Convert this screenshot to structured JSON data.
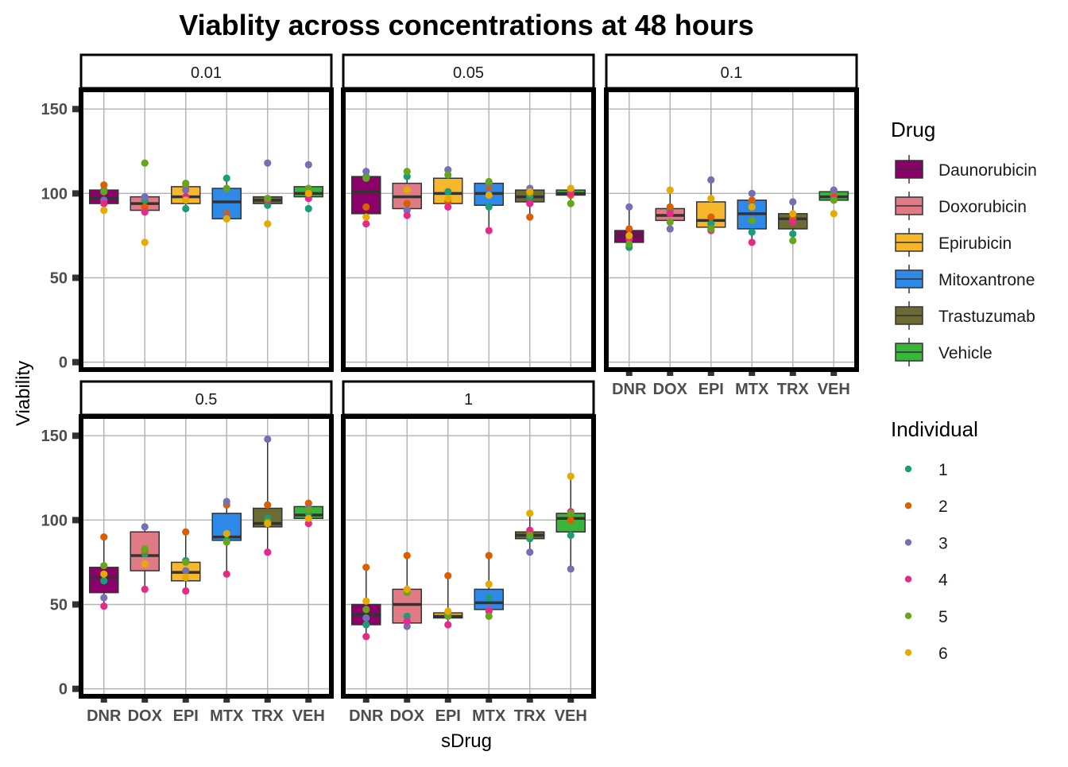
{
  "chart_data": {
    "type": "box",
    "title": "Viablity across concentrations at 48 hours",
    "xlabel": "sDrug",
    "ylabel": "Viability",
    "ylim": [
      -3,
      160
    ],
    "yticks": [
      0,
      50,
      100,
      150
    ],
    "grid": true,
    "legend_position": "right",
    "categories": [
      "DNR",
      "DOX",
      "EPI",
      "MTX",
      "TRX",
      "VEH"
    ],
    "drug_legend": {
      "title": "Drug",
      "items": [
        {
          "name": "Daunorubicin",
          "color": "#8B0069"
        },
        {
          "name": "Doxorubicin",
          "color": "#E07A84"
        },
        {
          "name": "Epirubicin",
          "color": "#F6B72F"
        },
        {
          "name": "Mitoxantrone",
          "color": "#2F89E6"
        },
        {
          "name": "Trastuzumab",
          "color": "#6B6B33"
        },
        {
          "name": "Vehicle",
          "color": "#3BB43B"
        }
      ]
    },
    "individual_legend": {
      "title": "Individual",
      "items": [
        {
          "name": "1",
          "color": "#1B9E77"
        },
        {
          "name": "2",
          "color": "#D95F02"
        },
        {
          "name": "3",
          "color": "#7570B3"
        },
        {
          "name": "4",
          "color": "#E7298A"
        },
        {
          "name": "5",
          "color": "#66A61E"
        },
        {
          "name": "6",
          "color": "#E6AB02"
        }
      ]
    },
    "facets": [
      {
        "label": "0.01",
        "boxes": [
          {
            "q1": 94,
            "median": 97,
            "q3": 102,
            "min": 94,
            "max": 104,
            "points": [
              102,
              105,
              96,
              94,
              101,
              90
            ]
          },
          {
            "q1": 90,
            "median": 94,
            "q3": 98,
            "min": 89,
            "max": 99,
            "points": [
              96,
              92,
              98,
              89,
              118,
              71
            ]
          },
          {
            "q1": 94,
            "median": 98,
            "q3": 104,
            "min": 91,
            "max": 106,
            "points": [
              91,
              104,
              102,
              98,
              106,
              96
            ]
          },
          {
            "q1": 85,
            "median": 95,
            "q3": 103,
            "min": 85,
            "max": 109,
            "points": [
              109,
              88,
              86,
              85,
              103,
              85
            ]
          },
          {
            "q1": 94,
            "median": 96,
            "q3": 98,
            "min": 94,
            "max": 98,
            "points": [
              93,
              97,
              118,
              96,
              97,
              82
            ]
          },
          {
            "q1": 98,
            "median": 100,
            "q3": 104,
            "min": 98,
            "max": 104,
            "points": [
              91,
              101,
              117,
              97,
              103,
              100
            ]
          }
        ]
      },
      {
        "label": "0.05",
        "boxes": [
          {
            "q1": 88,
            "median": 101,
            "q3": 110,
            "min": 82,
            "max": 113,
            "points": [
              110,
              92,
              113,
              82,
              109,
              86
            ]
          },
          {
            "q1": 91,
            "median": 98,
            "q3": 106,
            "min": 87,
            "max": 113,
            "points": [
              110,
              94,
              90,
              87,
              113,
              102
            ]
          },
          {
            "q1": 94,
            "median": 100,
            "q3": 109,
            "min": 92,
            "max": 114,
            "points": [
              101,
              95,
              114,
              92,
              111,
              97
            ]
          },
          {
            "q1": 93,
            "median": 100,
            "q3": 106,
            "min": 78,
            "max": 107,
            "points": [
              92,
              104,
              106,
              78,
              107,
              99
            ]
          },
          {
            "q1": 95,
            "median": 98,
            "q3": 102,
            "min": 86,
            "max": 103,
            "points": [
              98,
              86,
              103,
              94,
              100,
              101
            ]
          },
          {
            "q1": 99,
            "median": 100,
            "q3": 102,
            "min": 94,
            "max": 103,
            "points": [
              101,
              99,
              102,
              100,
              94,
              103
            ]
          }
        ]
      },
      {
        "label": "0.1",
        "boxes": [
          {
            "q1": 71,
            "median": 75,
            "q3": 78,
            "min": 68,
            "max": 92,
            "points": [
              68,
              79,
              92,
              73,
              70,
              75
            ]
          },
          {
            "q1": 84,
            "median": 87,
            "q3": 91,
            "min": 79,
            "max": 102,
            "points": [
              90,
              92,
              79,
              88,
              83,
              102
            ]
          },
          {
            "q1": 80,
            "median": 84,
            "q3": 95,
            "min": 78,
            "max": 108,
            "points": [
              82,
              86,
              108,
              78,
              79,
              97
            ]
          },
          {
            "q1": 79,
            "median": 88,
            "q3": 96,
            "min": 71,
            "max": 100,
            "points": [
              77,
              96,
              100,
              71,
              84,
              92
            ]
          },
          {
            "q1": 79,
            "median": 85,
            "q3": 88,
            "min": 72,
            "max": 95,
            "points": [
              76,
              85,
              95,
              83,
              72,
              88
            ]
          },
          {
            "q1": 96,
            "median": 98,
            "q3": 101,
            "min": 94,
            "max": 102,
            "points": [
              98,
              99,
              102,
              97,
              96,
              88
            ]
          }
        ]
      },
      {
        "label": "0.5",
        "boxes": [
          {
            "q1": 57,
            "median": 66,
            "q3": 72,
            "min": 49,
            "max": 90,
            "points": [
              64,
              90,
              54,
              49,
              73,
              68
            ]
          },
          {
            "q1": 70,
            "median": 79,
            "q3": 93,
            "min": 59,
            "max": 97,
            "points": [
              80,
              82,
              96,
              59,
              83,
              74
            ]
          },
          {
            "q1": 64,
            "median": 69,
            "q3": 75,
            "min": 58,
            "max": 93,
            "points": [
              76,
              93,
              70,
              58,
              75,
              66
            ]
          },
          {
            "q1": 88,
            "median": 90,
            "q3": 104,
            "min": 68,
            "max": 110,
            "points": [
              88,
              109,
              111,
              68,
              87,
              92
            ]
          },
          {
            "q1": 96,
            "median": 98,
            "q3": 107,
            "min": 81,
            "max": 148,
            "points": [
              101,
              109,
              148,
              81,
              99,
              98
            ]
          },
          {
            "q1": 101,
            "median": 103,
            "q3": 108,
            "min": 98,
            "max": 110,
            "points": [
              104,
              110,
              107,
              98,
              106,
              101
            ]
          }
        ]
      },
      {
        "label": "1",
        "boxes": [
          {
            "q1": 38,
            "median": 44,
            "q3": 50,
            "min": 31,
            "max": 72,
            "points": [
              38,
              72,
              42,
              31,
              47,
              52
            ]
          },
          {
            "q1": 39,
            "median": 50,
            "q3": 59,
            "min": 37,
            "max": 79,
            "points": [
              43,
              79,
              37,
              40,
              57,
              59
            ]
          },
          {
            "q1": 42,
            "median": 43,
            "q3": 45,
            "min": 38,
            "max": 67,
            "points": [
              44,
              67,
              45,
              38,
              43,
              46
            ]
          },
          {
            "q1": 47,
            "median": 51,
            "q3": 59,
            "min": 43,
            "max": 79,
            "points": [
              54,
              79,
              48,
              46,
              43,
              62
            ]
          },
          {
            "q1": 89,
            "median": 91,
            "q3": 93,
            "min": 81,
            "max": 104,
            "points": [
              89,
              93,
              81,
              94,
              91,
              104
            ]
          },
          {
            "q1": 93,
            "median": 101,
            "q3": 104,
            "min": 71,
            "max": 126,
            "points": [
              91,
              100,
              71,
              105,
              104,
              126
            ]
          }
        ]
      }
    ]
  }
}
